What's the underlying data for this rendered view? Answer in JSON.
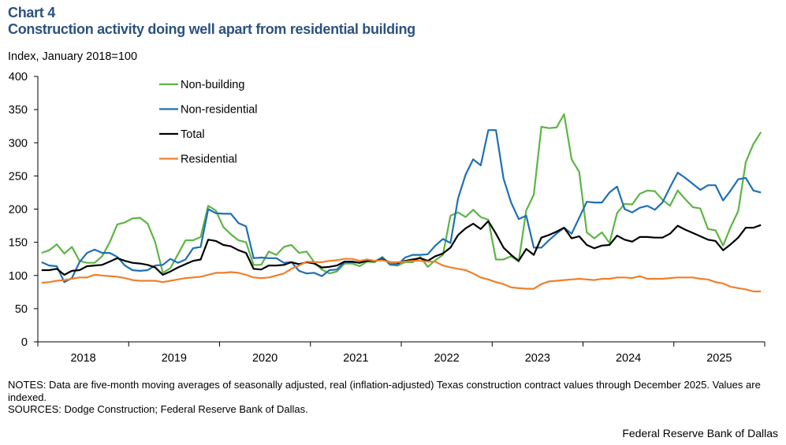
{
  "header": {
    "chart_number": "Chart 4",
    "title": "Construction activity doing well apart from residential building"
  },
  "footer": {
    "notes": "NOTES: Data are five-month moving averages of seasonally adjusted, real (inflation-adjusted) Texas construction contract values through December 2025. Values are indexed.",
    "sources": "SOURCES: Dodge Construction; Federal Reserve Bank of Dallas.",
    "credit": "Federal Reserve Bank of Dallas"
  },
  "chart_data": {
    "type": "line",
    "title": "Construction activity doing well apart from residential building",
    "ylabel": "Index, January 2018=100",
    "xlabel": "",
    "ylim": [
      0,
      400
    ],
    "yticks": [
      0,
      50,
      100,
      150,
      200,
      250,
      300,
      350,
      400
    ],
    "x_start": "2018-01",
    "x_end": "2025-12",
    "frequency": "monthly",
    "xtick_labels": [
      "2018",
      "2019",
      "2020",
      "2021",
      "2022",
      "2023",
      "2024",
      "2025"
    ],
    "grid": false,
    "legend_position": "top-left",
    "series": [
      {
        "name": "Non-building",
        "color": "#5DB544",
        "values": [
          134,
          138,
          147,
          133,
          143,
          122,
          119,
          119,
          129,
          150,
          177,
          180,
          186,
          187,
          178,
          150,
          104,
          111,
          132,
          153,
          153,
          158,
          205,
          198,
          173,
          162,
          153,
          150,
          116,
          116,
          136,
          131,
          143,
          146,
          134,
          136,
          120,
          109,
          103,
          106,
          118,
          118,
          114,
          121,
          120,
          128,
          116,
          115,
          120,
          120,
          128,
          113,
          123,
          131,
          190,
          195,
          188,
          199,
          188,
          184,
          124,
          124,
          129,
          121,
          198,
          222,
          324,
          322,
          323,
          343,
          275,
          256,
          165,
          156,
          165,
          149,
          194,
          208,
          207,
          223,
          228,
          227,
          214,
          205,
          228,
          215,
          203,
          201,
          170,
          168,
          145,
          173,
          197,
          271,
          298,
          316
        ]
      },
      {
        "name": "Non-residential",
        "color": "#1F6FB5",
        "values": [
          120,
          115,
          114,
          90,
          96,
          120,
          134,
          139,
          134,
          134,
          128,
          115,
          108,
          107,
          108,
          115,
          116,
          125,
          119,
          124,
          141,
          143,
          200,
          194,
          193,
          193,
          179,
          174,
          126,
          127,
          126,
          126,
          119,
          120,
          107,
          103,
          104,
          99,
          108,
          109,
          120,
          120,
          119,
          123,
          121,
          127,
          117,
          116,
          127,
          131,
          131,
          132,
          145,
          155,
          149,
          216,
          252,
          275,
          266,
          319,
          319,
          246,
          210,
          185,
          190,
          142,
          142,
          153,
          163,
          172,
          163,
          187,
          211,
          210,
          210,
          225,
          234,
          200,
          195,
          202,
          205,
          199,
          210,
          233,
          255,
          247,
          238,
          229,
          236,
          236,
          213,
          228,
          245,
          247,
          228,
          225
        ]
      },
      {
        "name": "Total",
        "color": "#000000",
        "values": [
          108,
          108,
          110,
          101,
          107,
          108,
          114,
          115,
          116,
          121,
          126,
          122,
          119,
          118,
          116,
          112,
          101,
          106,
          112,
          117,
          122,
          124,
          154,
          152,
          146,
          144,
          138,
          134,
          110,
          109,
          115,
          115,
          116,
          120,
          117,
          120,
          118,
          112,
          113,
          115,
          121,
          121,
          119,
          122,
          122,
          124,
          120,
          119,
          122,
          124,
          126,
          122,
          129,
          133,
          142,
          161,
          171,
          178,
          170,
          182,
          163,
          142,
          131,
          122,
          140,
          131,
          157,
          161,
          166,
          172,
          156,
          159,
          146,
          141,
          145,
          146,
          160,
          154,
          151,
          158,
          158,
          157,
          157,
          163,
          175,
          169,
          164,
          159,
          154,
          152,
          138,
          147,
          157,
          172,
          172,
          176
        ]
      },
      {
        "name": "Residential",
        "color": "#F07F2A",
        "values": [
          89,
          90,
          92,
          93,
          95,
          97,
          97,
          101,
          100,
          99,
          98,
          96,
          93,
          92,
          92,
          92,
          90,
          92,
          94,
          96,
          97,
          98,
          101,
          104,
          104,
          105,
          104,
          101,
          97,
          96,
          97,
          100,
          103,
          110,
          115,
          121,
          120,
          120,
          122,
          123,
          125,
          125,
          122,
          124,
          122,
          123,
          120,
          120,
          121,
          122,
          122,
          121,
          121,
          115,
          112,
          110,
          108,
          103,
          97,
          94,
          90,
          87,
          82,
          81,
          80,
          80,
          87,
          91,
          92,
          93,
          94,
          95,
          94,
          93,
          95,
          95,
          97,
          97,
          96,
          99,
          95,
          95,
          95,
          96,
          97,
          97,
          97,
          95,
          94,
          90,
          88,
          83,
          81,
          79,
          76,
          76
        ]
      }
    ]
  }
}
